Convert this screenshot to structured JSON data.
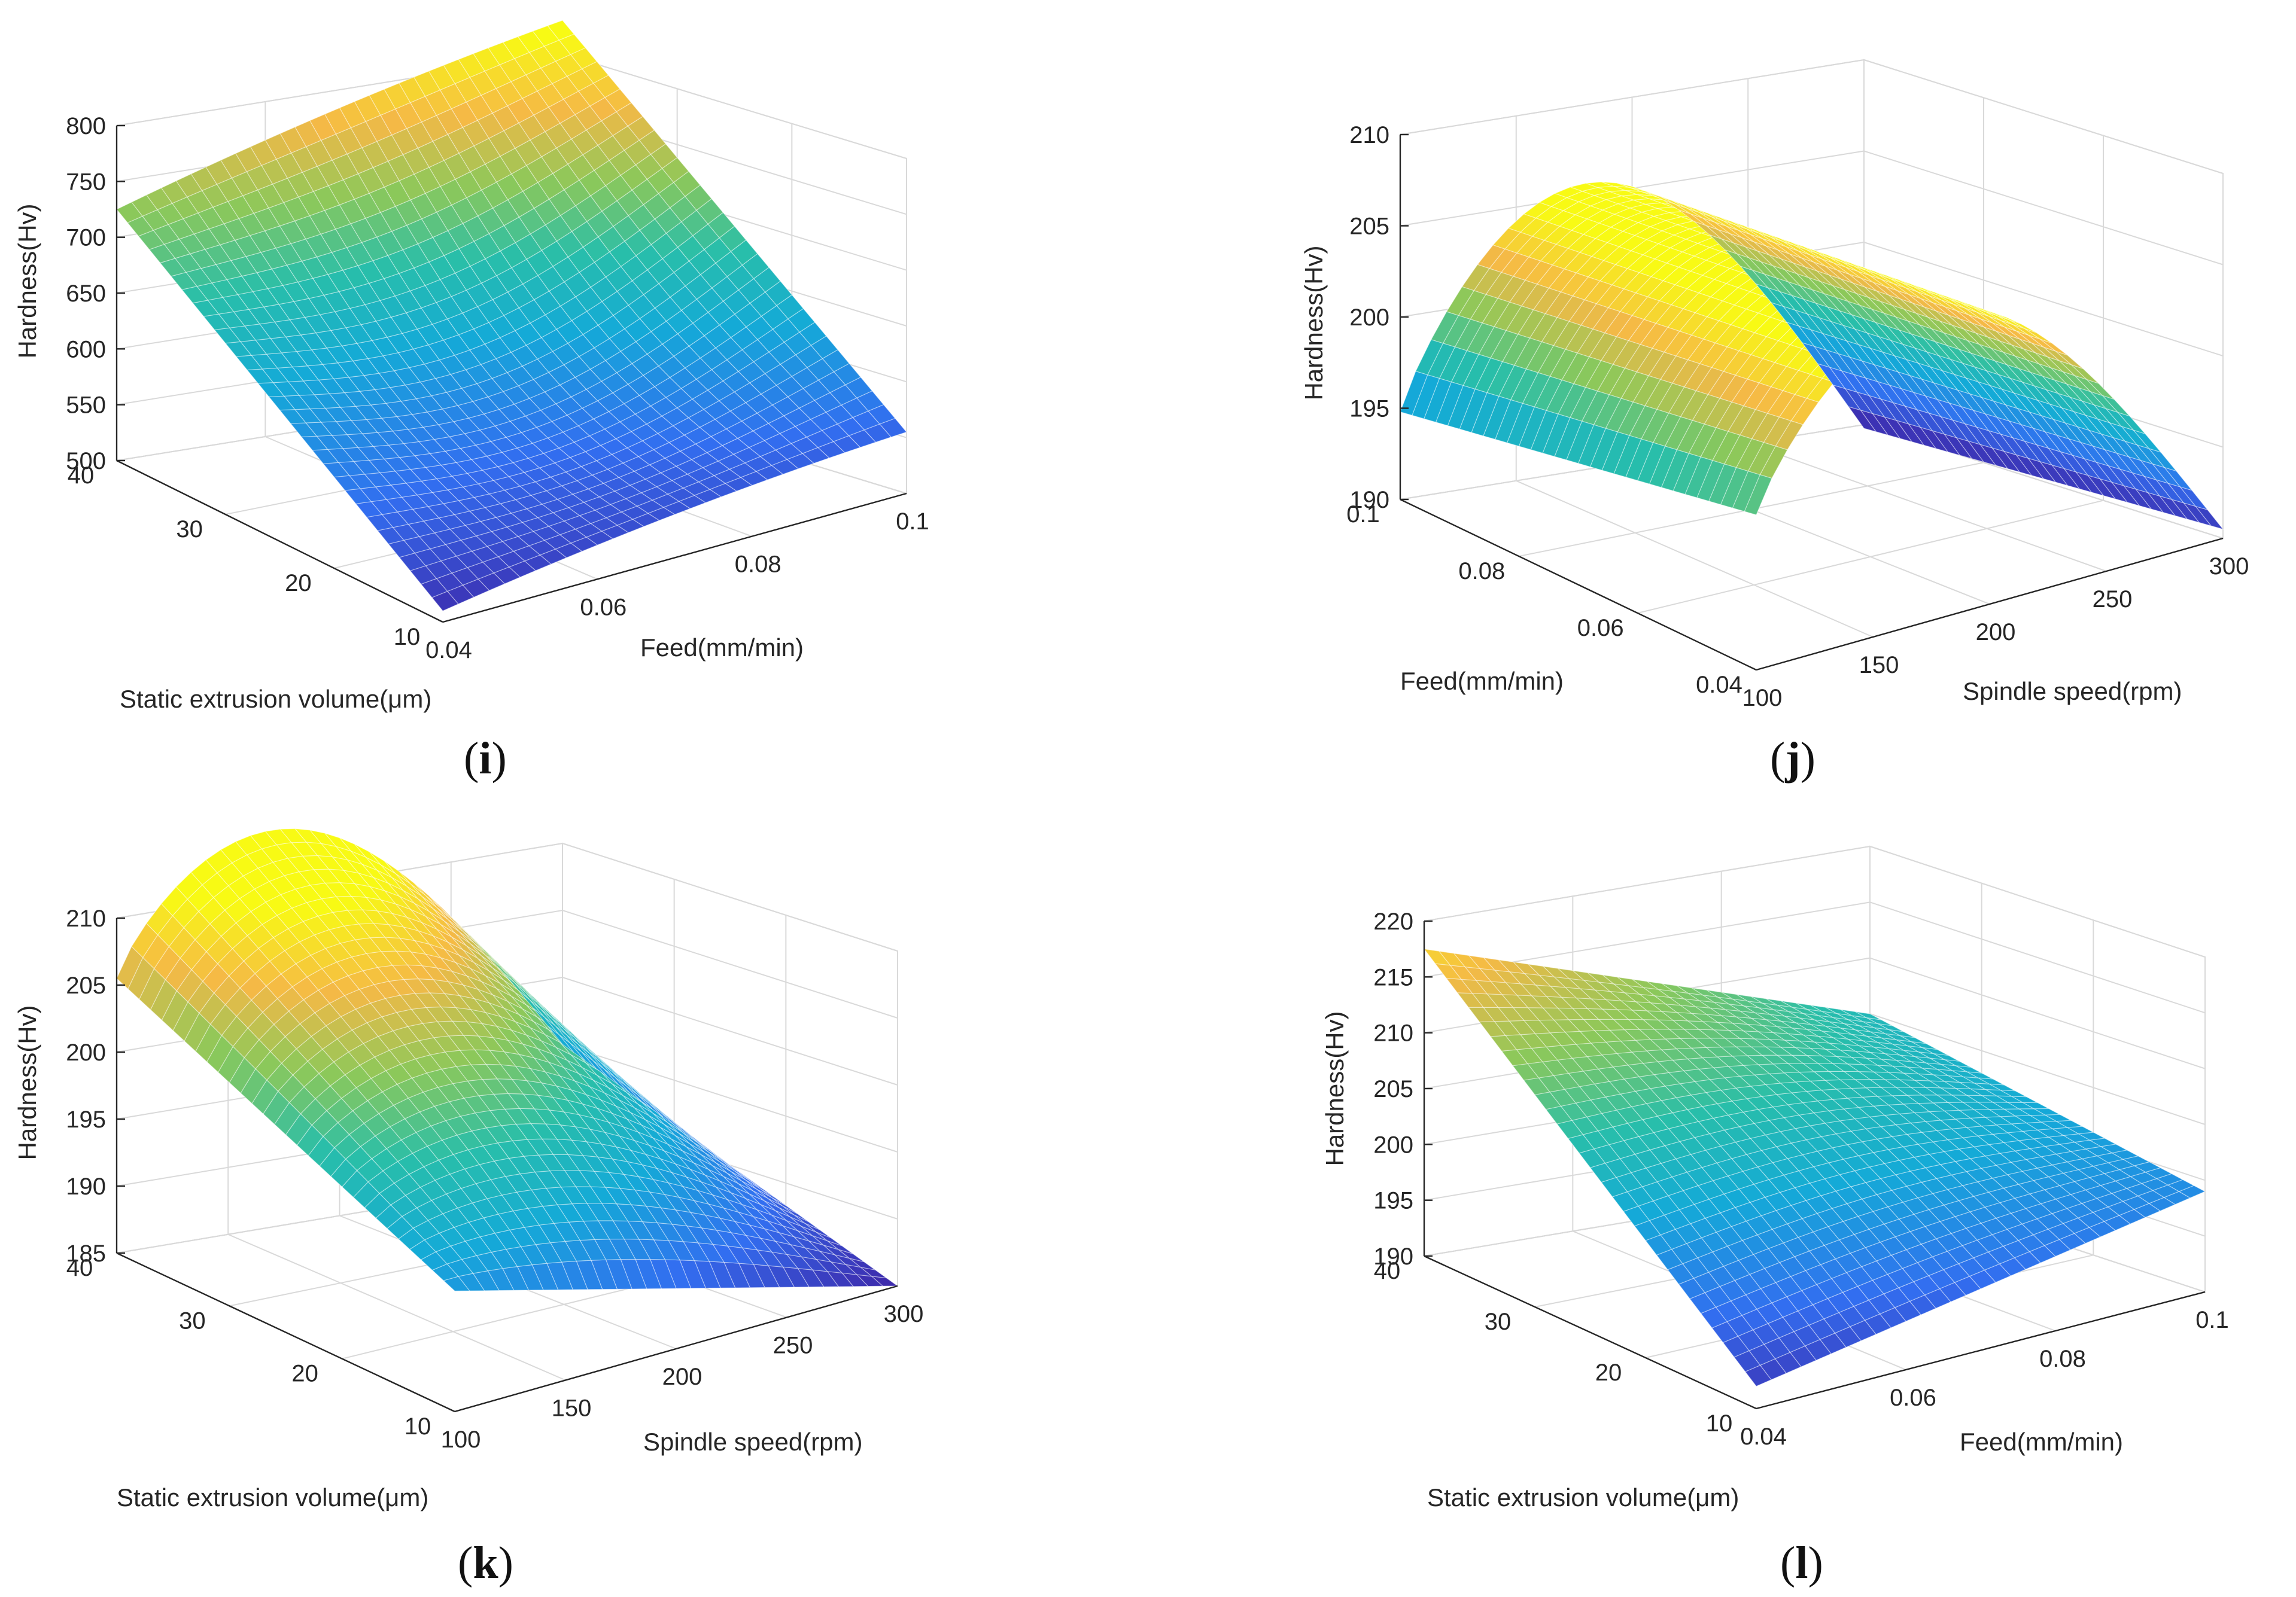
{
  "figure": {
    "panels": [
      "i",
      "j",
      "k",
      "l"
    ]
  },
  "chart_data": [
    {
      "id": "i",
      "panel_label": "i",
      "type": "surface3d",
      "xlabel": "Feed(mm/min)",
      "ylabel": "Static extrusion volume(μm)",
      "zlabel": "Hardness(Hv)",
      "x_ticks": [
        "0.04",
        "0.06",
        "0.08",
        "0.1"
      ],
      "y_ticks": [
        "10",
        "20",
        "30",
        "40"
      ],
      "z_ticks": [
        "500",
        "550",
        "600",
        "650",
        "700",
        "750",
        "800"
      ],
      "xlim": [
        0.04,
        0.1
      ],
      "ylim": [
        10,
        40
      ],
      "zlim": [
        500,
        800
      ],
      "corner_values": {
        "x0.04_y10": 510,
        "x0.1_y10": 555,
        "x0.04_y40": 725,
        "x0.1_y40": 830
      },
      "surface": "saddle-shaped; minimum ~510 Hv at feed 0.04, extrusion 10 μm; maximum ~830 Hv at feed 0.1, extrusion 40 μm"
    },
    {
      "id": "j",
      "panel_label": "j",
      "type": "surface3d",
      "xlabel": "Spindle speed(rpm)",
      "ylabel": "Feed(mm/min)",
      "zlabel": "Hardness(Hv)",
      "x_ticks": [
        "100",
        "150",
        "200",
        "250",
        "300"
      ],
      "y_ticks": [
        "0.04",
        "0.06",
        "0.08",
        "0.1"
      ],
      "z_ticks": [
        "190",
        "195",
        "200",
        "205",
        "210"
      ],
      "xlim": [
        100,
        300
      ],
      "ylim": [
        0.04,
        0.1
      ],
      "zlim": [
        190,
        210
      ],
      "corner_values": {
        "x100_y0.1": 196,
        "x100_y0.04": 198.5,
        "x300_y0.04": 190.5,
        "x300_y0.1": 191
      },
      "surface": "dome-shaped; peak ~204.5 Hv near spindle speed 180 rpm"
    },
    {
      "id": "k",
      "panel_label": "k",
      "type": "surface3d",
      "xlabel": "Spindle speed(rpm)",
      "ylabel": "Static extrusion volume(μm)",
      "zlabel": "Hardness(Hv)",
      "x_ticks": [
        "100",
        "150",
        "200",
        "250",
        "300"
      ],
      "y_ticks": [
        "10",
        "20",
        "30",
        "40"
      ],
      "z_ticks": [
        "185",
        "190",
        "195",
        "200",
        "205",
        "210"
      ],
      "xlim": [
        100,
        300
      ],
      "ylim": [
        10,
        40
      ],
      "zlim": [
        185,
        210
      ],
      "corner_values": {
        "x100_y40": 205.5,
        "x100_y10": 194,
        "x300_y10": 185,
        "x300_y40": 204
      },
      "surface": "ridge near spindle speed 150–200 rpm at high extrusion (~210.5 Hv); minimum ~185 Hv at 300 rpm, 10 μm"
    },
    {
      "id": "l",
      "panel_label": "l",
      "type": "surface3d",
      "xlabel": "Feed(mm/min)",
      "ylabel": "Static extrusion volume(μm)",
      "zlabel": "Hardness(Hv)",
      "x_ticks": [
        "0.04",
        "0.06",
        "0.08",
        "0.1"
      ],
      "y_ticks": [
        "10",
        "20",
        "30",
        "40"
      ],
      "z_ticks": [
        "190",
        "195",
        "200",
        "205",
        "210",
        "215",
        "220"
      ],
      "xlim": [
        0.04,
        0.1
      ],
      "ylim": [
        10,
        40
      ],
      "zlim": [
        190,
        220
      ],
      "corner_values": {
        "x0.04_y40": 217.5,
        "x0.04_y10": 192,
        "x0.1_y10": 199,
        "x0.1_y40": 205
      },
      "surface": "near-planar twisted surface; max ~217.5 Hv at feed 0.04, extrusion 40 μm; min ~192 Hv at feed 0.04, extrusion 10 μm"
    }
  ]
}
